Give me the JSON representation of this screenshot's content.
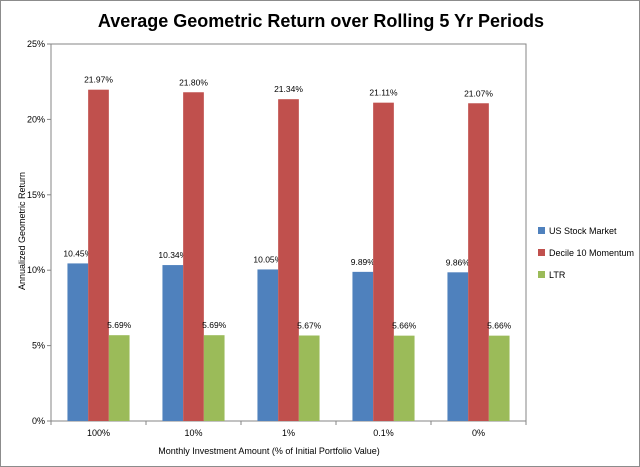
{
  "chart_data": {
    "type": "bar",
    "title": "Average Geometric Return over Rolling 5 Yr Periods",
    "xlabel": "Monthly Investment Amount (% of Initial Portfolio Value)",
    "ylabel": "Annualized Geometric Return",
    "categories": [
      "100%",
      "10%",
      "1%",
      "0.1%",
      "0%"
    ],
    "ylim": [
      0,
      25
    ],
    "yticks": [
      0,
      5,
      10,
      15,
      20,
      25
    ],
    "ytick_labels": [
      "0%",
      "5%",
      "10%",
      "15%",
      "20%",
      "25%"
    ],
    "grid": false,
    "legend_position": "right",
    "series": [
      {
        "name": "US Stock Market",
        "color": "#4f81bd",
        "values": [
          10.45,
          10.34,
          10.05,
          9.89,
          9.86
        ],
        "labels": [
          "10.45%",
          "10.34%",
          "10.05%",
          "9.89%",
          "9.86%"
        ]
      },
      {
        "name": "Decile 10 Momentum",
        "color": "#c0504d",
        "values": [
          21.97,
          21.8,
          21.34,
          21.11,
          21.07
        ],
        "labels": [
          "21.97%",
          "21.80%",
          "21.34%",
          "21.11%",
          "21.07%"
        ]
      },
      {
        "name": "LTR",
        "color": "#9bbb59",
        "values": [
          5.69,
          5.69,
          5.67,
          5.66,
          5.66
        ],
        "labels": [
          "5.69%",
          "5.69%",
          "5.67%",
          "5.66%",
          "5.66%"
        ]
      }
    ]
  }
}
